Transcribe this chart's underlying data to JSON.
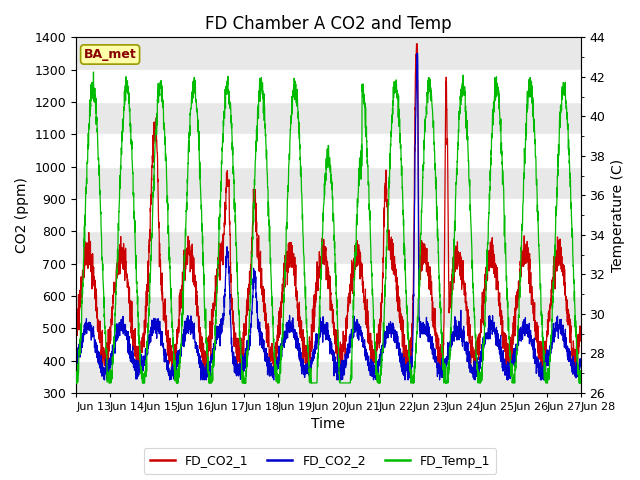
{
  "title": "FD Chamber A CO2 and Temp",
  "xlabel": "Time",
  "ylabel_left": "CO2 (ppm)",
  "ylabel_right": "Temperature (C)",
  "ylim_left": [
    300,
    1400
  ],
  "ylim_right": [
    26,
    44
  ],
  "yticks_left": [
    300,
    400,
    500,
    600,
    700,
    800,
    900,
    1000,
    1100,
    1200,
    1300,
    1400
  ],
  "yticks_right": [
    26,
    28,
    30,
    32,
    34,
    36,
    38,
    40,
    42,
    44
  ],
  "xtick_labels": [
    "Jun 13",
    "Jun 14",
    "Jun 15",
    "Jun 16",
    "Jun 17",
    "Jun 18",
    "Jun 19",
    "Jun 20",
    "Jun 21",
    "Jun 22",
    "Jun 23",
    "Jun 24",
    "Jun 25",
    "Jun 26",
    "Jun 27",
    "Jun 28"
  ],
  "color_co2_1": "#cc0000",
  "color_co2_2": "#0000cc",
  "color_temp": "#00bb00",
  "legend_label_1": "FD_CO2_1",
  "legend_label_2": "FD_CO2_2",
  "legend_label_3": "FD_Temp_1",
  "annotation_text": "BA_met",
  "n_points": 3000,
  "title_fontsize": 12,
  "axis_fontsize": 10,
  "tick_fontsize": 9,
  "figsize": [
    6.4,
    4.8
  ],
  "dpi": 100
}
